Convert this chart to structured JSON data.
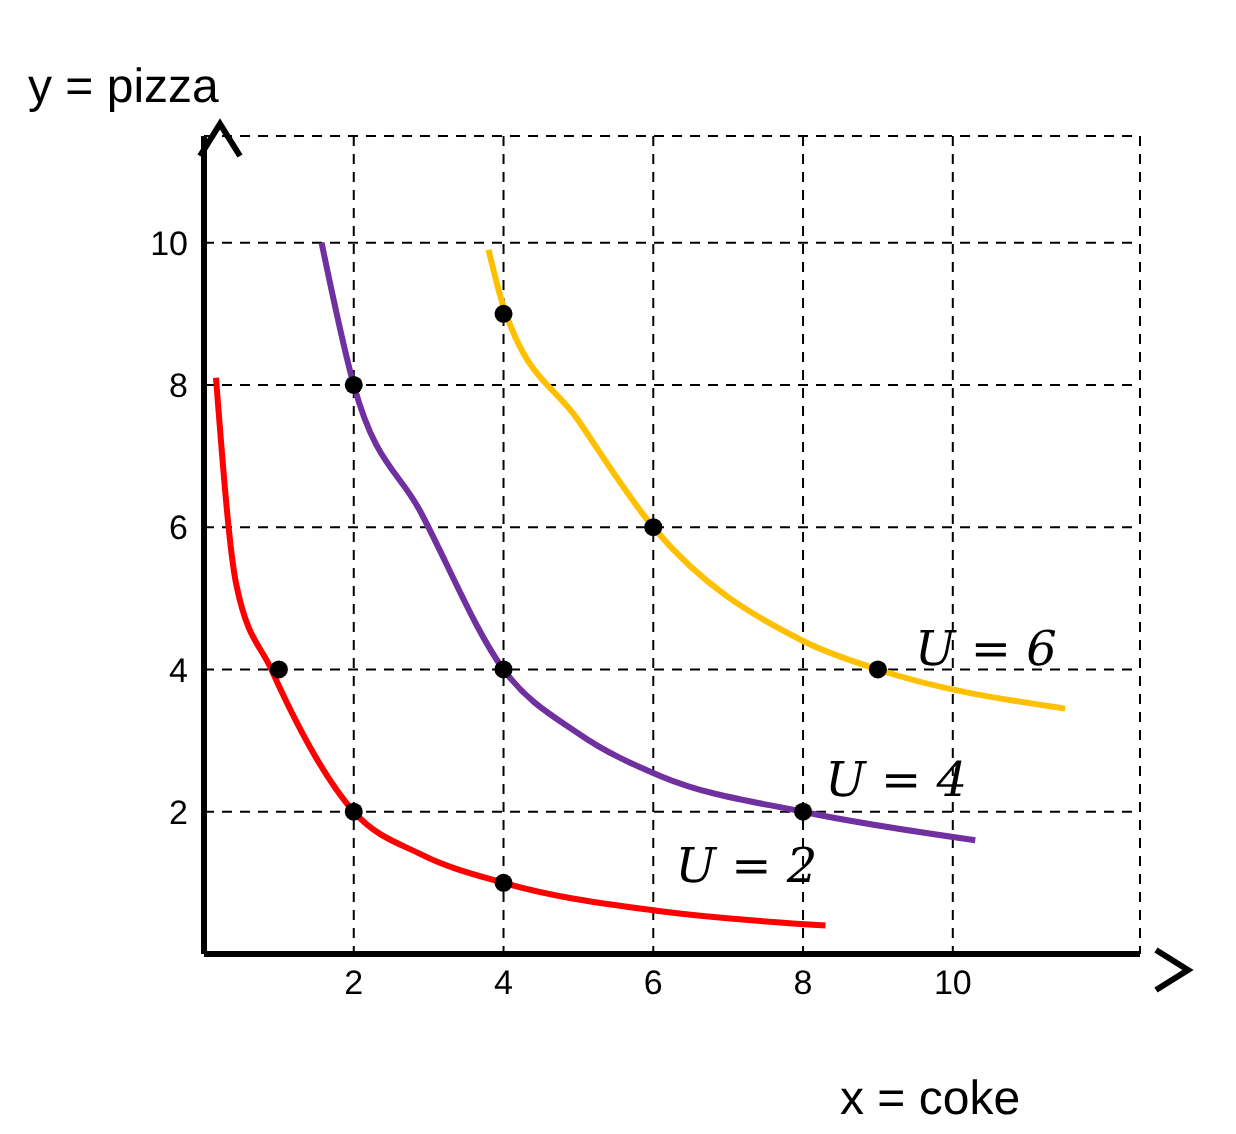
{
  "chart_data": {
    "type": "line",
    "xlabel": "x = coke",
    "ylabel": "y = pizza",
    "xlim": [
      0,
      12.5
    ],
    "ylim": [
      0,
      11.5
    ],
    "xticks": [
      2,
      4,
      6,
      8,
      10
    ],
    "yticks": [
      2,
      4,
      6,
      8,
      10
    ],
    "grid": true,
    "series": [
      {
        "name": "U = 2",
        "color": "#ff0000",
        "marker": "none",
        "x": [
          0.16,
          0.43,
          0.9,
          2,
          2.9,
          4,
          6.1,
          8.3
        ],
        "values": [
          8.1,
          5.2,
          4,
          2,
          1.4,
          1,
          0.6,
          0.4
        ]
      },
      {
        "name": "U = 4",
        "color": "#7030a0",
        "marker": "none",
        "x": [
          1.57,
          2,
          2.9,
          4,
          5,
          6.1,
          8,
          10.3
        ],
        "values": [
          10,
          8,
          6.2,
          4,
          3.1,
          2.5,
          2,
          1.6
        ]
      },
      {
        "name": "U = 6",
        "color": "#ffc000",
        "marker": "none",
        "x": [
          3.8,
          4,
          5,
          6,
          8,
          9,
          11.5
        ],
        "values": [
          9.9,
          9.1,
          7.5,
          6,
          4.4,
          4,
          3.45
        ]
      },
      {
        "type": "scatter",
        "color": "#000000",
        "marker": "circle",
        "x": [
          1,
          2,
          4,
          2,
          4,
          8,
          4,
          6,
          9
        ],
        "values": [
          4,
          2,
          1,
          8,
          4,
          2,
          9,
          6,
          4
        ]
      }
    ]
  }
}
